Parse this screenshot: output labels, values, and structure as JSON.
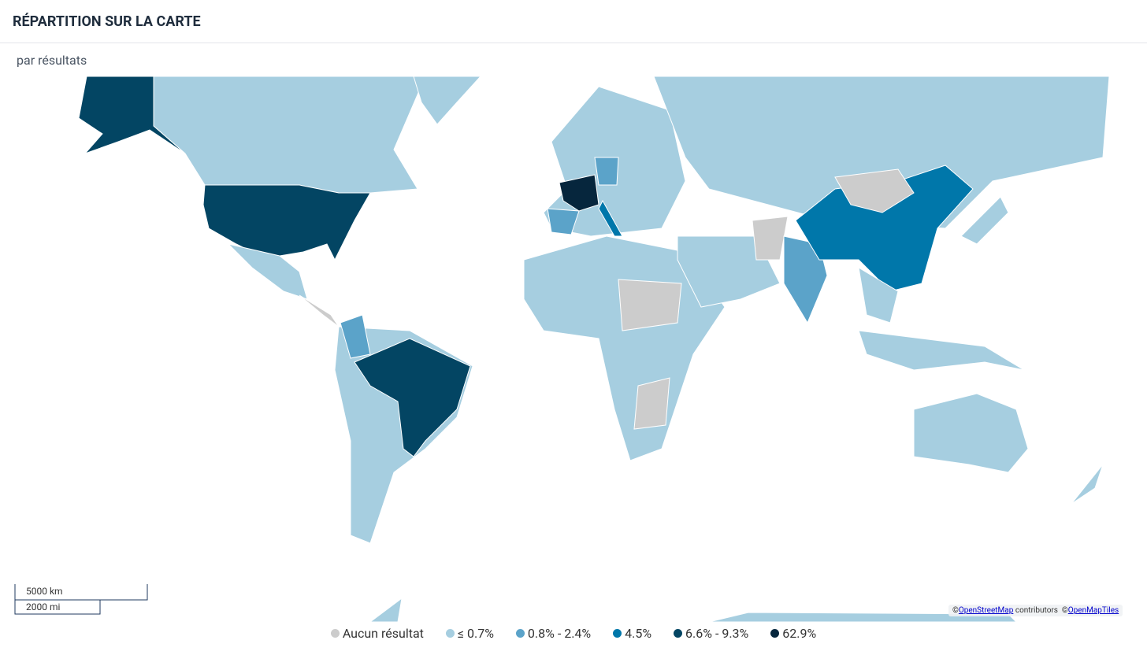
{
  "header": {
    "title": "RÉPARTITION SUR LA CARTE"
  },
  "subtitle": "par résultats",
  "scale": {
    "km": "5000 km",
    "mi": "2000 mi"
  },
  "attribution": {
    "prefix1": "©",
    "link1": "OpenStreetMap",
    "mid": " contributors  ©",
    "link2": "OpenMapTiles"
  },
  "legend": [
    {
      "label": "Aucun résultat",
      "color": "#cccccc"
    },
    {
      "label": "≤ 0.7%",
      "color": "#a6cee0"
    },
    {
      "label": "0.8% - 2.4%",
      "color": "#5ba3c9"
    },
    {
      "label": "4.5%",
      "color": "#0077aa"
    },
    {
      "label": "6.6% - 9.3%",
      "color": "#034563"
    },
    {
      "label": "62.9%",
      "color": "#06263d"
    }
  ]
}
